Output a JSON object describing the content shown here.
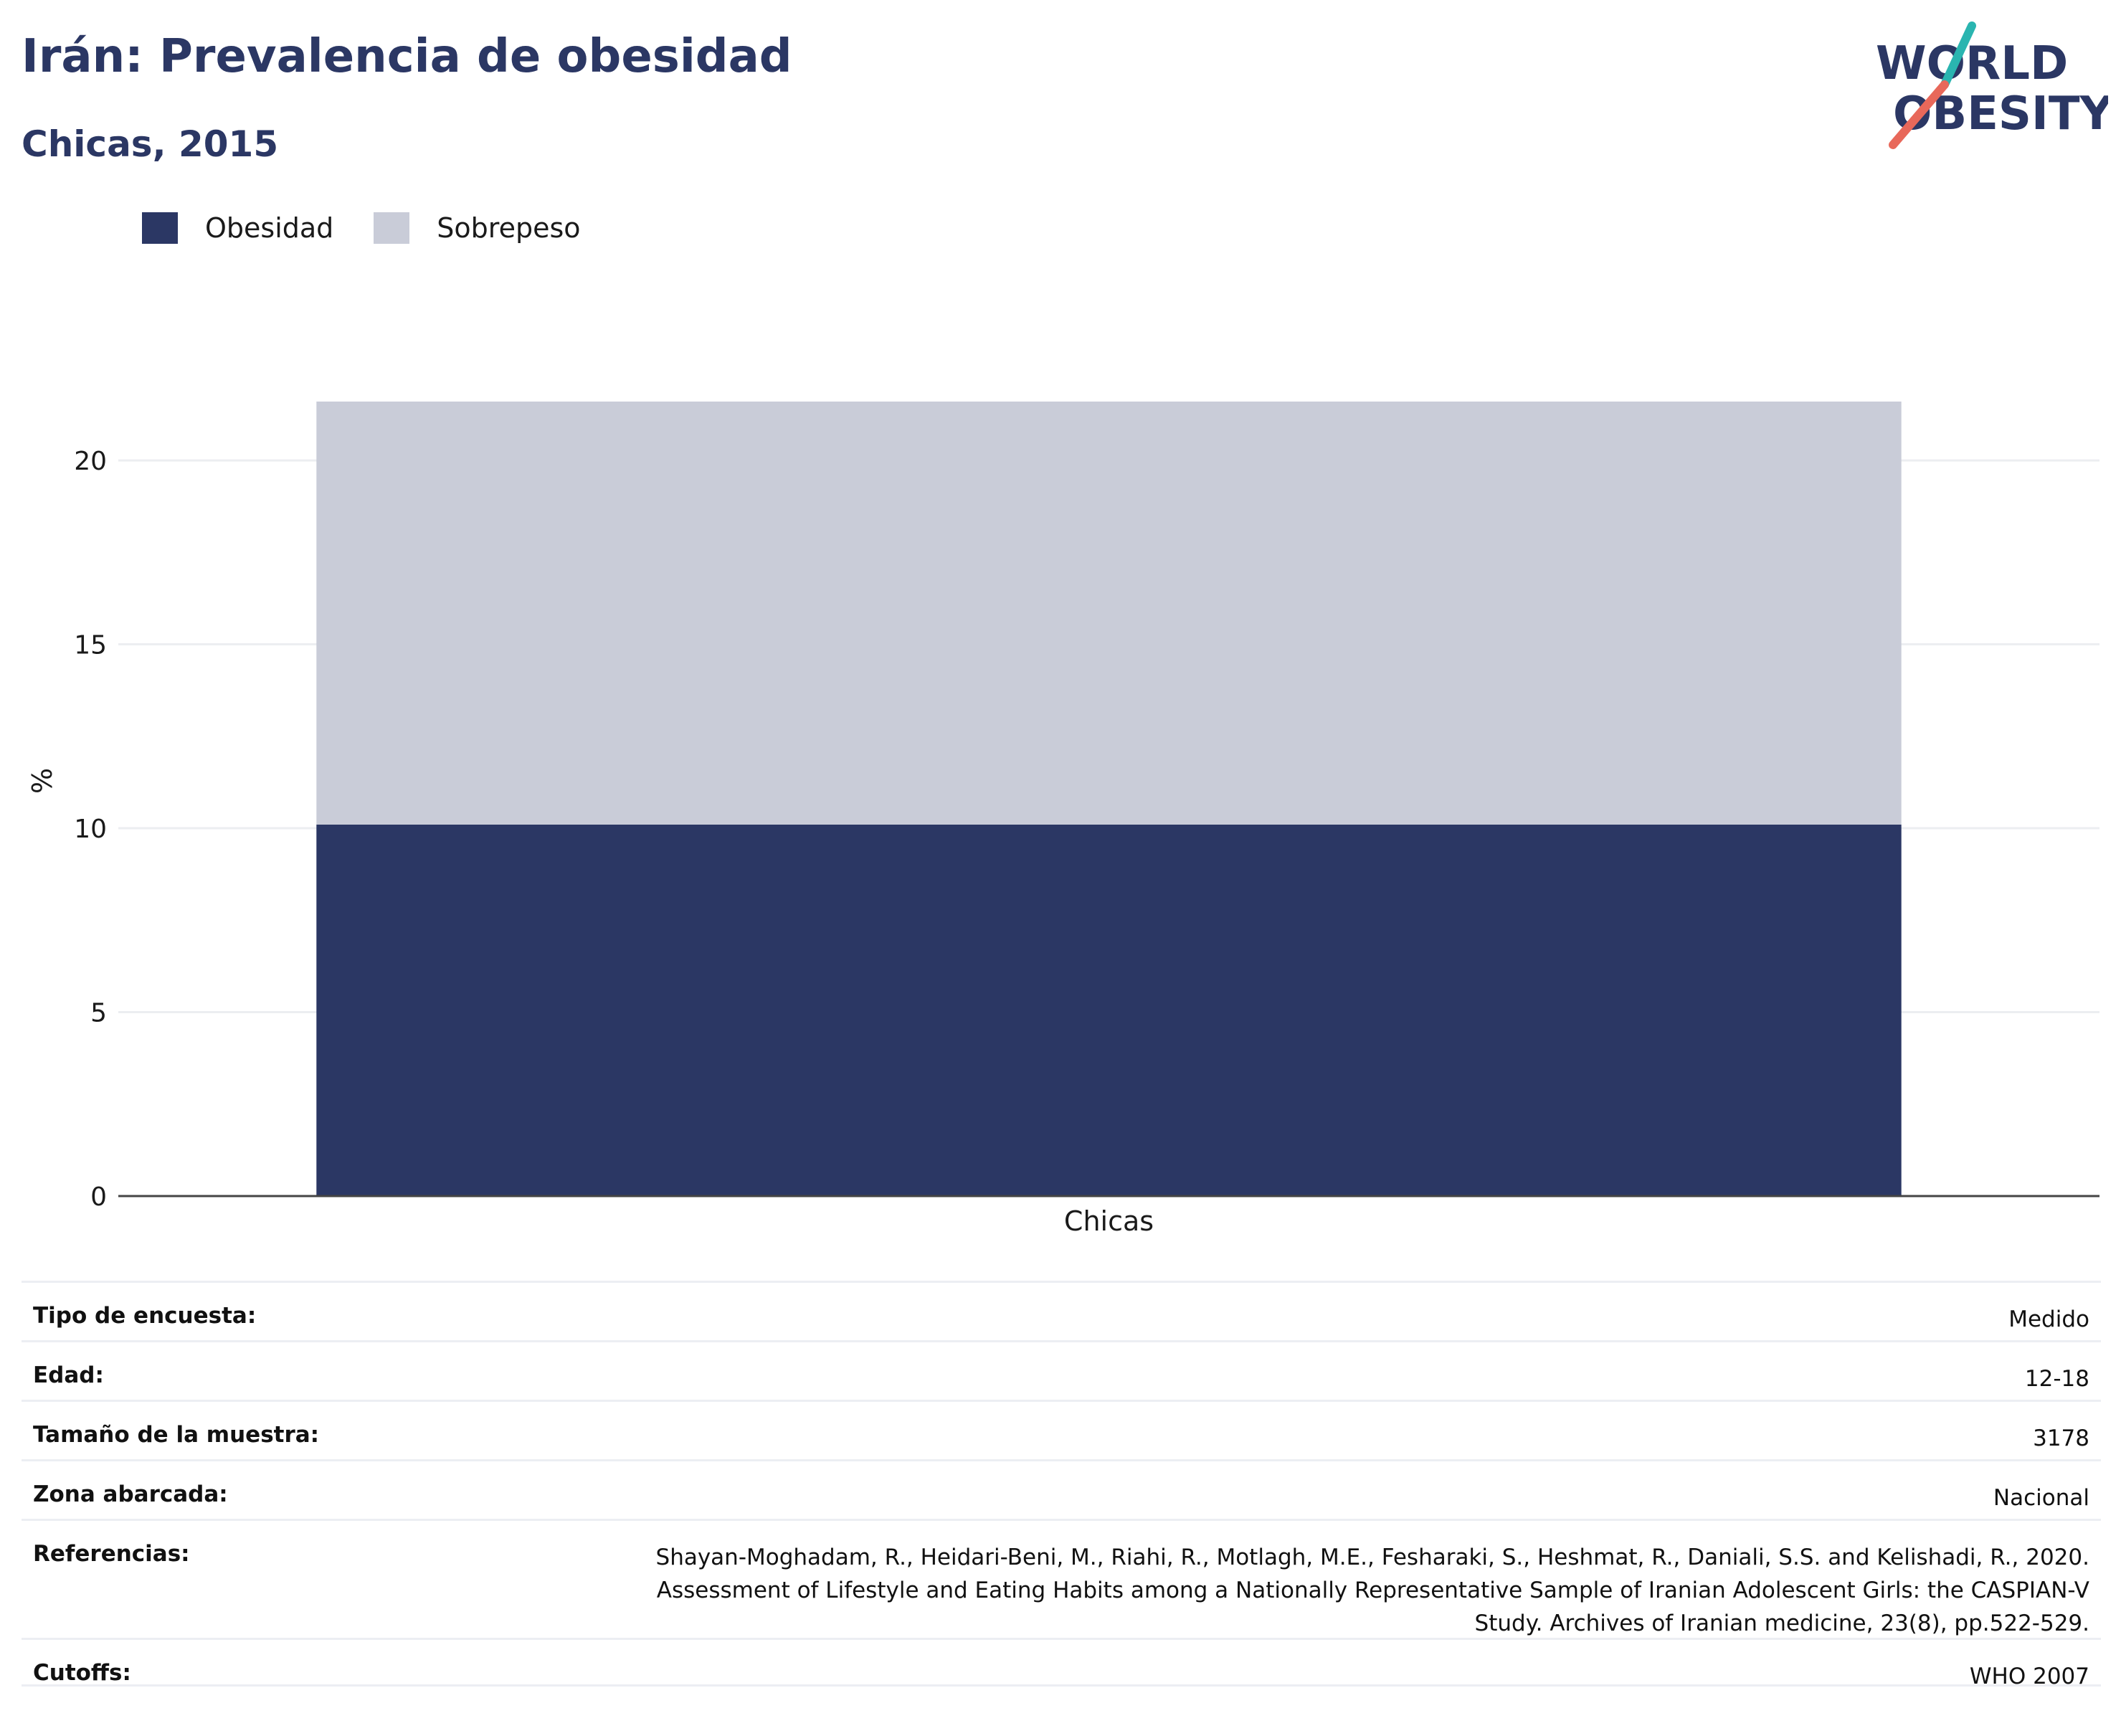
{
  "header": {
    "title": "Irán: Prevalencia de obesidad",
    "subtitle": "Chicas, 2015"
  },
  "logo": {
    "line1": "WORLD",
    "line2": "OBESITY",
    "text_color": "#2b3764",
    "slash_top_color": "#2ab5b0",
    "slash_bottom_color": "#e8685a"
  },
  "legend": [
    {
      "label": "Obesidad",
      "color": "#2b3764"
    },
    {
      "label": "Sobrepeso",
      "color": "#c9ccd8"
    }
  ],
  "chart_data": {
    "type": "bar",
    "stacked": true,
    "categories": [
      "Chicas"
    ],
    "series": [
      {
        "name": "Obesidad",
        "values": [
          10.1
        ],
        "color": "#2b3764"
      },
      {
        "name": "Sobrepeso",
        "values": [
          11.5
        ],
        "color": "#c9ccd8"
      }
    ],
    "ylabel": "%",
    "ylim": [
      0,
      21.6
    ],
    "yticks": [
      0,
      5,
      10,
      15,
      20
    ],
    "grid": true,
    "legend_position": "top-left"
  },
  "info": {
    "rows": [
      {
        "key": "Tipo de encuesta:",
        "value": "Medido"
      },
      {
        "key": "Edad:",
        "value": "12-18"
      },
      {
        "key": "Tamaño de la muestra:",
        "value": "3178"
      },
      {
        "key": "Zona abarcada:",
        "value": "Nacional"
      },
      {
        "key": "Referencias:",
        "value": "Shayan-Moghadam, R., Heidari-Beni, M., Riahi, R., Motlagh, M.E., Fesharaki, S., Heshmat, R., Daniali, S.S. and Kelishadi, R., 2020. Assessment of Lifestyle and Eating Habits among a Nationally Representative Sample of Iranian Adolescent Girls: the CASPIAN-V Study. Archives of Iranian medicine, 23(8), pp.522-529."
      },
      {
        "key": "Cutoffs:",
        "value": "WHO 2007"
      }
    ]
  }
}
